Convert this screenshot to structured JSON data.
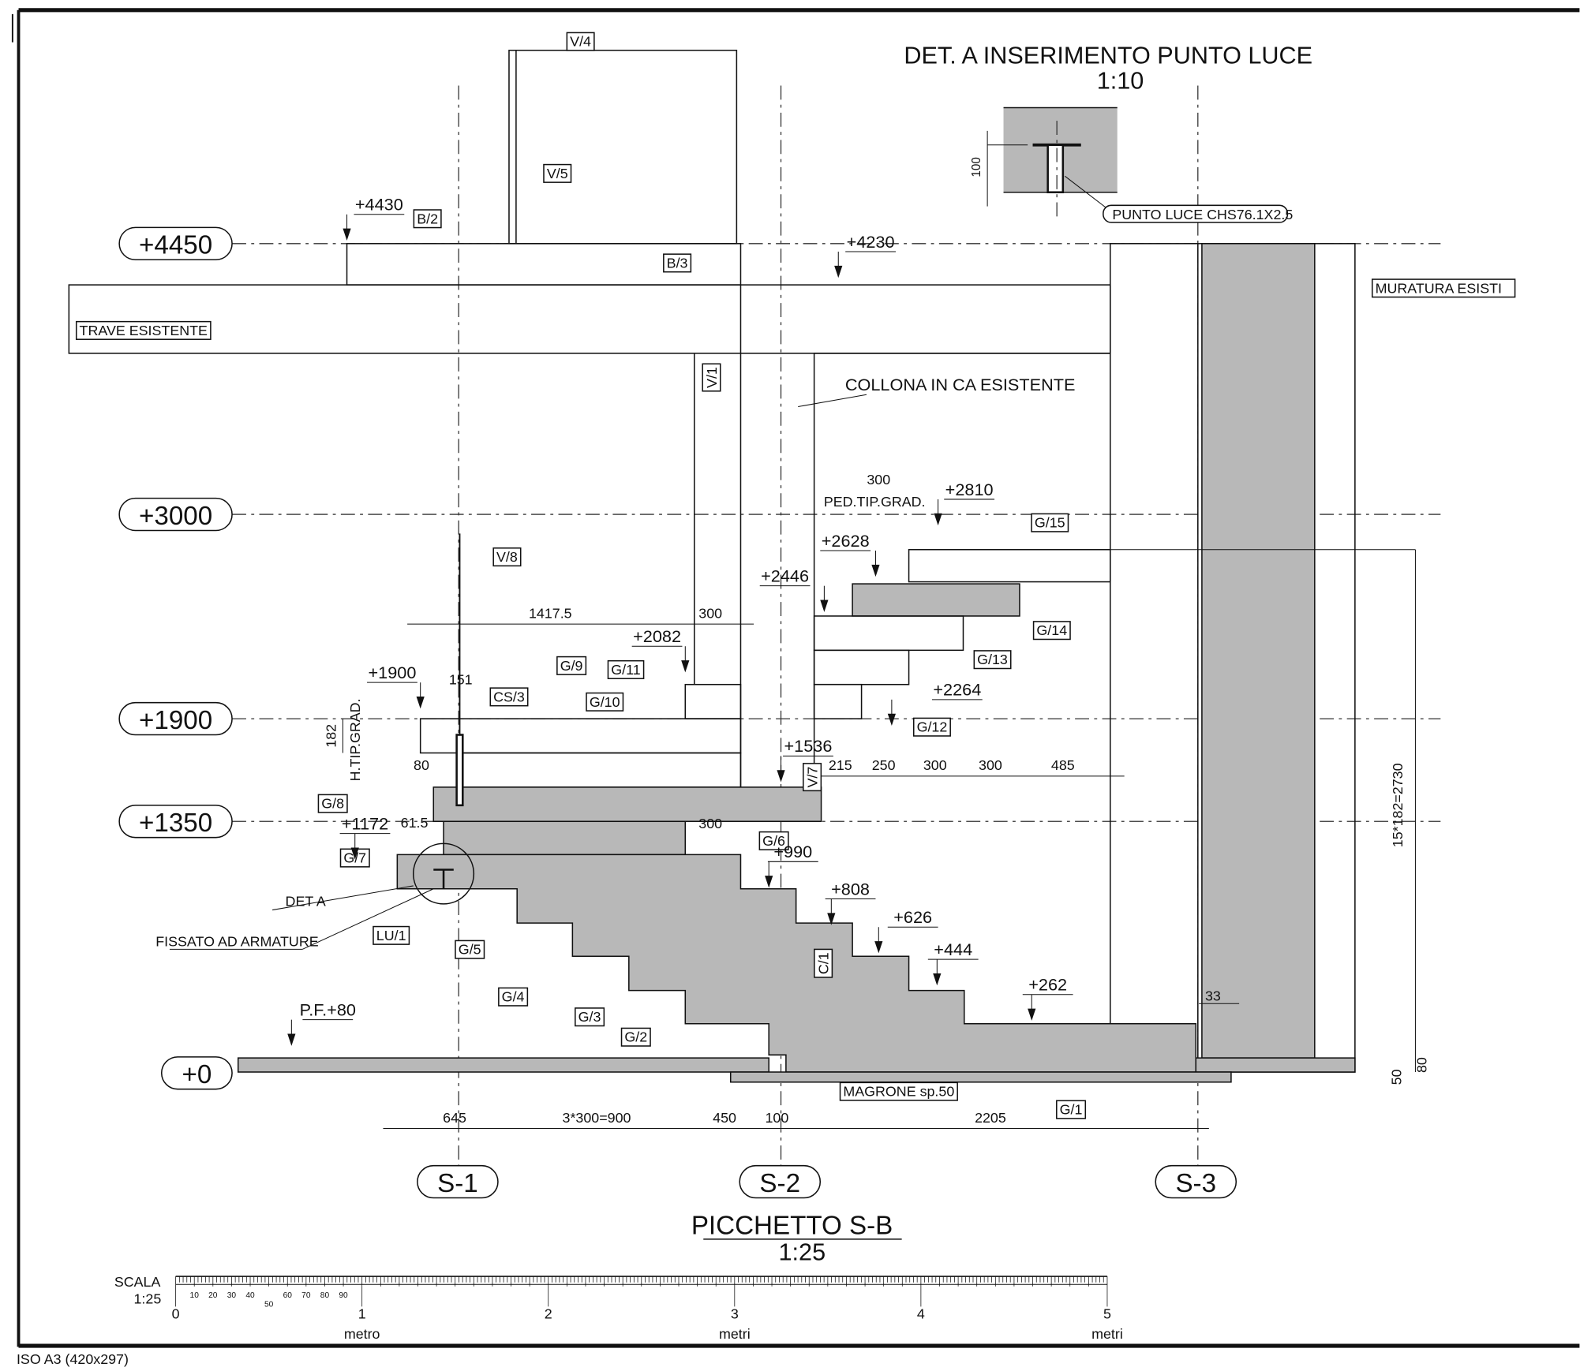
{
  "sheet": {
    "format": "ISO A3 (420x297)"
  },
  "title": {
    "main": "PICCHETTO S-B",
    "scale": "1:25"
  },
  "detail": {
    "title": "DET.  A INSERIMENTO PUNTO LUCE",
    "scale": "1:10",
    "dim": "100",
    "callout": "PUNTO LUCE    CHS76.1X2.5"
  },
  "levels": [
    "+4450",
    "+3000",
    "+1900",
    "+1350",
    "+0"
  ],
  "axes": [
    "S-1",
    "S-2",
    "S-3"
  ],
  "tags": [
    "V/4",
    "V/5",
    "B/2",
    "B/3",
    "V/1",
    "V/8",
    "G/15",
    "G/14",
    "G/13",
    "G/12",
    "G/11",
    "G/10",
    "G/9",
    "CS/3",
    "V/7",
    "G/8",
    "G/7",
    "G/6",
    "LU/1",
    "G/5",
    "G/4",
    "G/3",
    "G/2",
    "C/1",
    "G/1",
    "MAGRONE    sp.50",
    "MURATURA ESISTI",
    "TRAVE ESISTENTE"
  ],
  "elevations": [
    "+4430",
    "+4230",
    "+2810",
    "+2628",
    "+2446",
    "+2082",
    "+1900",
    "+2264",
    "+1536",
    "+1172",
    "+990",
    "+808",
    "+626",
    "+444",
    "+262",
    "P.F.+80"
  ],
  "dimensions": [
    "300",
    "PED.TIP.GRAD.",
    "1417.5",
    "300",
    "151",
    "182",
    "H.TIP.GRAD.",
    "80",
    "215",
    "250",
    "300",
    "300",
    "485",
    "61.5",
    "300",
    "645",
    "3*300=900",
    "450",
    "100",
    "2205",
    "33",
    "15*182=2730",
    "50",
    "80"
  ],
  "notes": [
    "COLLONA IN CA ESISTENTE",
    "DET  A",
    "FISSATO AD ARMATURE"
  ],
  "scale_bar": {
    "label": "SCALA",
    "ratio": "1:25",
    "cm_ticks": [
      "10",
      "20",
      "30",
      "40",
      "50",
      "60",
      "70",
      "80",
      "90"
    ],
    "major": [
      "0",
      "1",
      "2",
      "3",
      "4",
      "5"
    ],
    "units": [
      "metro",
      "metri",
      "metri"
    ]
  }
}
